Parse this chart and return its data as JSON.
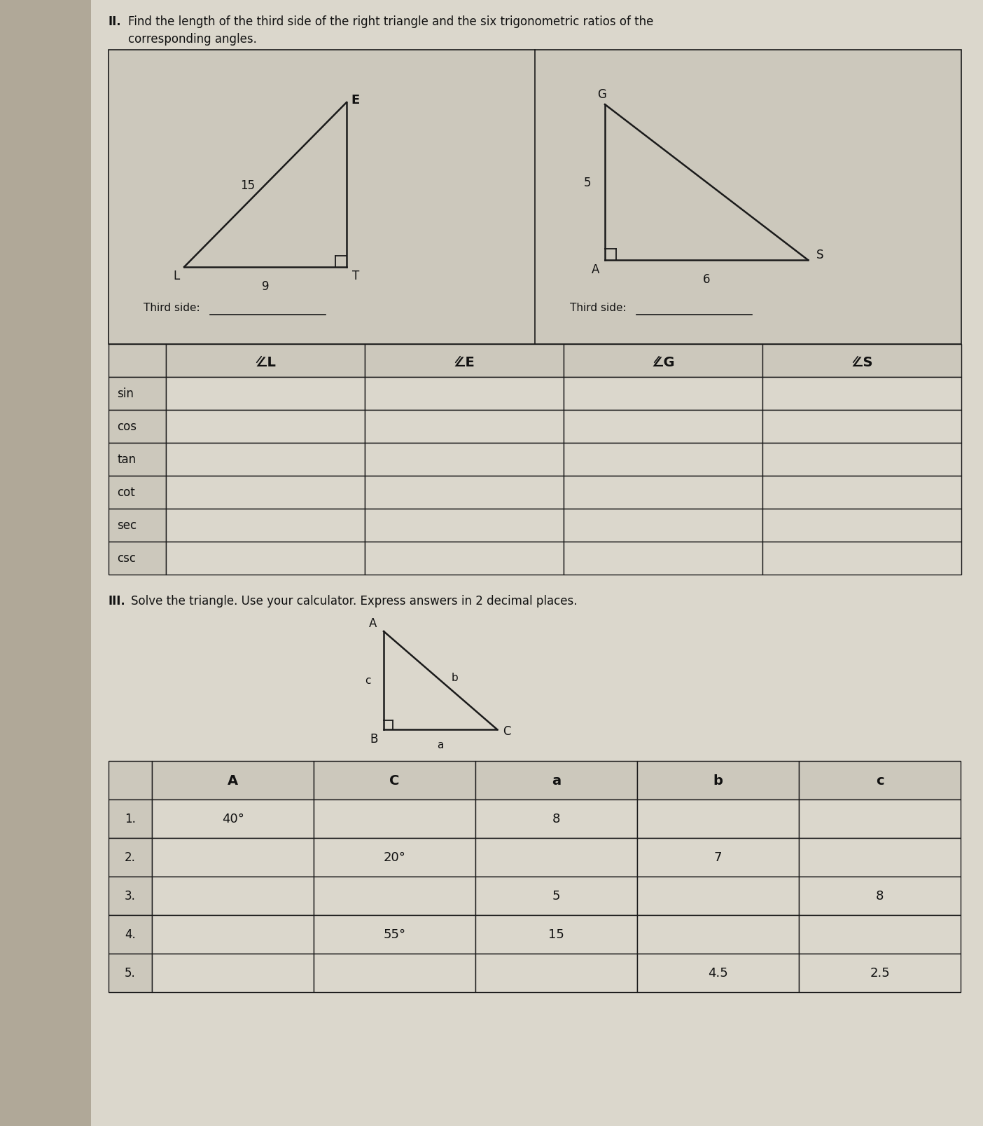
{
  "title_II_num": "II.",
  "title_II_text": "Find the length of the third side of the right triangle and the six trigonometric ratios of the",
  "title_II_line2": "corresponding angles.",
  "title_III_num": "III.",
  "title_III_text": "Solve the triangle. Use your calculator. Express answers in 2 decimal places.",
  "tri1_side_labels": {
    "hyp": "15",
    "base": "9"
  },
  "tri1_third_side_label": "Third side: ",
  "tri2_side_labels": {
    "vert": "5",
    "base": "6"
  },
  "tri2_third_side_label": "Third side: ",
  "trig_rows": [
    "sin",
    "cos",
    "tan",
    "cot",
    "sec",
    "csc"
  ],
  "trig_cols": [
    "∠L",
    "∠E",
    "∠G",
    "∠S"
  ],
  "solve_cols": [
    "",
    "A",
    "C",
    "a",
    "b",
    "c"
  ],
  "solve_data": [
    [
      "1.",
      "40°",
      "",
      "8",
      "",
      ""
    ],
    [
      "2.",
      "",
      "20°",
      "",
      "7",
      ""
    ],
    [
      "3.",
      "",
      "",
      "5",
      "",
      "8"
    ],
    [
      "4.",
      "",
      "55°",
      "15",
      "",
      ""
    ],
    [
      "5.",
      "",
      "",
      "",
      "4.5",
      "2.5"
    ]
  ],
  "bg_color": "#b0a898",
  "paper_color": "#dbd7cc",
  "box_color": "#ccc8bc",
  "line_color": "#1a1a1a",
  "text_color": "#111111",
  "tbl_header_color": "#ccc8bc"
}
